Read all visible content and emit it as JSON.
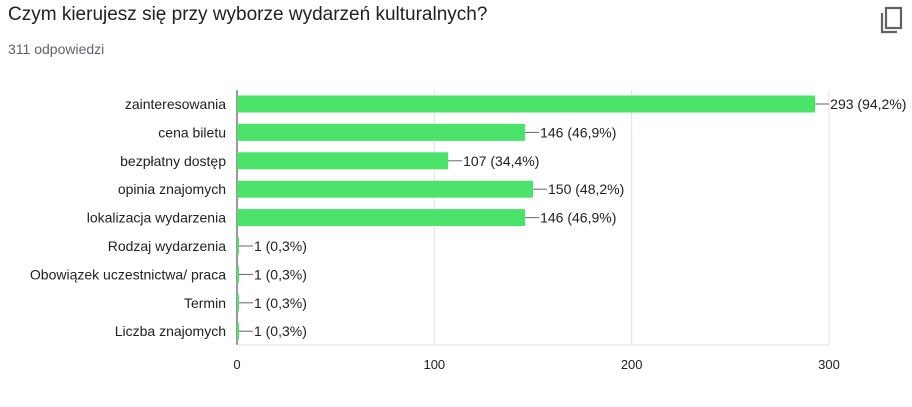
{
  "question": {
    "title": "Czym kierujesz się przy wyborze wydarzeń kulturalnych?",
    "responses": "311 odpowiedzi"
  },
  "toolbar": {
    "copy_icon": "copy-icon"
  },
  "colors": {
    "bar": "#4be36a",
    "grid": "#e0e0e0",
    "axis": "#333333",
    "text": "#202124",
    "connector": "#666666"
  },
  "chart_data": {
    "type": "bar",
    "orientation": "horizontal",
    "categories": [
      "zainteresowania",
      "cena biletu",
      "bezpłatny dostęp",
      "opinia znajomych",
      "lokalizacja wydarzenia",
      "Rodzaj wydarzenia",
      "Obowiązek uczestnictwa/ praca",
      "Termin",
      "Liczba znajomych"
    ],
    "values": [
      293,
      146,
      107,
      150,
      146,
      1,
      1,
      1,
      1
    ],
    "data_labels": [
      "293 (94,2%)",
      "146 (46,9%)",
      "107 (34,4%)",
      "150 (48,2%)",
      "146 (46,9%)",
      "1 (0,3%)",
      "1 (0,3%)",
      "1 (0,3%)",
      "1 (0,3%)"
    ],
    "x_ticks": [
      0,
      100,
      200,
      300
    ],
    "x_tick_labels": [
      "0",
      "100",
      "200",
      "300"
    ],
    "xlim": [
      0,
      300
    ],
    "grid": true,
    "legend": "none"
  }
}
